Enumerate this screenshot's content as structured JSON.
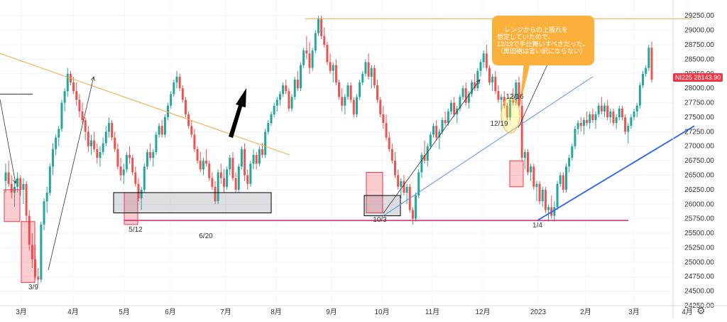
{
  "chart_data": {
    "type": "candlestick",
    "symbol": "NI225",
    "last_price": "28143.90",
    "colors": {
      "up": "#26a69a",
      "down": "#ef5350",
      "accent": "#f23645",
      "callout": "#fbb03b"
    },
    "ylim": [
      24250,
      29400
    ],
    "y_ticks": [
      "24250.00",
      "24500.00",
      "24750.00",
      "25000.00",
      "25250.00",
      "25500.00",
      "25750.00",
      "26000.00",
      "26250.00",
      "26500.00",
      "26750.00",
      "27000.00",
      "27250.00",
      "27500.00",
      "27750.00",
      "28000.00",
      "28250.00",
      "28500.00",
      "28750.00",
      "29000.00",
      "29250.00"
    ],
    "x_ticks": [
      "3月",
      "4月",
      "5月",
      "6月",
      "7月",
      "8月",
      "9月",
      "10月",
      "11月",
      "12月",
      "2023",
      "2月",
      "3月",
      "4月"
    ],
    "events": [
      "3/9",
      "5/12",
      "6/20",
      "10/3",
      "12/16",
      "12/19",
      "1/4"
    ],
    "callout": "レンジからの上振れを\n想定していたので、\n12/19で手仕舞いすべきだった。\n（黒田砲は言い訳にならない）",
    "candles": [
      [
        26400,
        26700,
        26200,
        26550
      ],
      [
        26550,
        26750,
        26300,
        26350
      ],
      [
        26350,
        26500,
        26100,
        26200
      ],
      [
        26200,
        26400,
        25950,
        26300
      ],
      [
        26300,
        26550,
        26200,
        26450
      ],
      [
        26450,
        26500,
        26150,
        26250
      ],
      [
        26250,
        26450,
        26000,
        26350
      ],
      [
        26350,
        26400,
        25700,
        25800
      ],
      [
        25800,
        25900,
        25200,
        25300
      ],
      [
        25300,
        25500,
        24900,
        25050
      ],
      [
        25050,
        25300,
        24700,
        24750
      ],
      [
        24750,
        24900,
        24600,
        24700
      ],
      [
        24700,
        25700,
        24650,
        25650
      ],
      [
        25650,
        26100,
        25550,
        26050
      ],
      [
        26050,
        26300,
        25850,
        26200
      ],
      [
        26200,
        26700,
        26150,
        26650
      ],
      [
        26650,
        27050,
        26500,
        26950
      ],
      [
        26950,
        27200,
        26850,
        27150
      ],
      [
        27150,
        27350,
        27000,
        27300
      ],
      [
        27300,
        27800,
        27250,
        27750
      ],
      [
        27750,
        28000,
        27600,
        27950
      ],
      [
        27950,
        28350,
        27850,
        28250
      ],
      [
        28250,
        28300,
        28050,
        28100
      ],
      [
        28100,
        28200,
        27900,
        27950
      ],
      [
        27950,
        28100,
        27700,
        27800
      ],
      [
        27800,
        27900,
        27500,
        27600
      ],
      [
        27600,
        27750,
        27400,
        27450
      ],
      [
        27450,
        27500,
        27100,
        27250
      ],
      [
        27250,
        27350,
        26900,
        27000
      ],
      [
        27000,
        27200,
        26850,
        27100
      ],
      [
        27100,
        27250,
        26900,
        26950
      ],
      [
        26950,
        27050,
        26700,
        26800
      ],
      [
        26800,
        27000,
        26650,
        26900
      ],
      [
        26900,
        27150,
        26850,
        27050
      ],
      [
        27050,
        27350,
        27000,
        27250
      ],
      [
        27250,
        27500,
        27150,
        27400
      ],
      [
        27400,
        27450,
        27100,
        27150
      ],
      [
        27150,
        27250,
        26900,
        26950
      ],
      [
        26950,
        27050,
        26600,
        26650
      ],
      [
        26650,
        26800,
        26400,
        26500
      ],
      [
        26500,
        26700,
        26350,
        26600
      ],
      [
        26600,
        26900,
        26550,
        26850
      ],
      [
        26850,
        27000,
        26700,
        26800
      ],
      [
        26800,
        26850,
        26500,
        26550
      ],
      [
        26550,
        26650,
        26300,
        26350
      ],
      [
        26350,
        26450,
        26050,
        26100
      ],
      [
        26100,
        26300,
        25900,
        26250
      ],
      [
        26250,
        26700,
        26200,
        26650
      ],
      [
        26650,
        26950,
        26600,
        26900
      ],
      [
        26900,
        27050,
        26750,
        26800
      ],
      [
        26800,
        26950,
        26650,
        26900
      ],
      [
        26900,
        27250,
        26850,
        27200
      ],
      [
        27200,
        27400,
        27150,
        27350
      ],
      [
        27350,
        27450,
        27150,
        27200
      ],
      [
        27200,
        27550,
        27150,
        27500
      ],
      [
        27500,
        27750,
        27450,
        27700
      ],
      [
        27700,
        27950,
        27650,
        27900
      ],
      [
        27900,
        28150,
        27850,
        28100
      ],
      [
        28100,
        28300,
        28000,
        28200
      ],
      [
        28200,
        28250,
        27950,
        28000
      ],
      [
        28000,
        28050,
        27750,
        27800
      ],
      [
        27800,
        27850,
        27500,
        27550
      ],
      [
        27550,
        27600,
        27300,
        27350
      ],
      [
        27350,
        27450,
        27150,
        27200
      ],
      [
        27200,
        27300,
        26900,
        26950
      ],
      [
        26950,
        27000,
        26700,
        26750
      ],
      [
        26750,
        26900,
        26550,
        26600
      ],
      [
        26600,
        26800,
        26500,
        26750
      ],
      [
        26750,
        26950,
        26650,
        26700
      ],
      [
        26700,
        26750,
        26400,
        26450
      ],
      [
        26450,
        26550,
        26250,
        26300
      ],
      [
        26300,
        26400,
        26000,
        26050
      ],
      [
        26050,
        26600,
        26000,
        26550
      ],
      [
        26550,
        26700,
        26350,
        26450
      ],
      [
        26450,
        26600,
        26200,
        26300
      ],
      [
        26300,
        26650,
        26250,
        26600
      ],
      [
        26600,
        26850,
        26500,
        26800
      ],
      [
        26800,
        26900,
        26400,
        26450
      ],
      [
        26450,
        26550,
        26200,
        26250
      ],
      [
        26250,
        26700,
        26200,
        26650
      ],
      [
        26650,
        27000,
        26600,
        26950
      ],
      [
        26950,
        27050,
        26400,
        26500
      ],
      [
        26500,
        26600,
        26250,
        26350
      ],
      [
        26350,
        26750,
        26300,
        26700
      ],
      [
        26700,
        26950,
        26600,
        26850
      ],
      [
        26850,
        26900,
        26600,
        26700
      ],
      [
        26700,
        27000,
        26650,
        26950
      ],
      [
        26950,
        27050,
        26800,
        26850
      ],
      [
        26850,
        27300,
        26800,
        27250
      ],
      [
        27250,
        27450,
        27200,
        27400
      ],
      [
        27400,
        27600,
        27350,
        27550
      ],
      [
        27550,
        27750,
        27500,
        27700
      ],
      [
        27700,
        27850,
        27600,
        27800
      ],
      [
        27800,
        27950,
        27700,
        27900
      ],
      [
        27900,
        28100,
        27850,
        28050
      ],
      [
        28050,
        28150,
        27900,
        27950
      ],
      [
        27950,
        28000,
        27600,
        27650
      ],
      [
        27650,
        27900,
        27600,
        27850
      ],
      [
        27850,
        28200,
        27800,
        28150
      ],
      [
        28150,
        28300,
        27950,
        28000
      ],
      [
        28000,
        28450,
        27950,
        28400
      ],
      [
        28400,
        28700,
        28350,
        28650
      ],
      [
        28650,
        28900,
        28500,
        28600
      ],
      [
        28600,
        28800,
        28250,
        28350
      ],
      [
        28350,
        28700,
        28300,
        28650
      ],
      [
        28650,
        29000,
        28600,
        28950
      ],
      [
        28950,
        29250,
        28900,
        29200
      ],
      [
        29200,
        29250,
        28850,
        28900
      ],
      [
        28900,
        29050,
        28700,
        28750
      ],
      [
        28750,
        28800,
        28400,
        28450
      ],
      [
        28450,
        28600,
        28250,
        28300
      ],
      [
        28300,
        28450,
        28100,
        28400
      ],
      [
        28400,
        28500,
        28050,
        28100
      ],
      [
        28100,
        28150,
        27800,
        27850
      ],
      [
        27850,
        28000,
        27600,
        27700
      ],
      [
        27700,
        27900,
        27550,
        27850
      ],
      [
        27850,
        28100,
        27800,
        28050
      ],
      [
        28050,
        28100,
        27750,
        27800
      ],
      [
        27800,
        27850,
        27500,
        27550
      ],
      [
        27550,
        27900,
        27500,
        27850
      ],
      [
        27850,
        28150,
        27800,
        28100
      ],
      [
        28100,
        28300,
        28050,
        28250
      ],
      [
        28250,
        28500,
        28200,
        28450
      ],
      [
        28450,
        28600,
        28150,
        28200
      ],
      [
        28200,
        28400,
        28000,
        28350
      ],
      [
        28350,
        28400,
        28000,
        28050
      ],
      [
        28050,
        28150,
        27750,
        27800
      ],
      [
        27800,
        27850,
        27500,
        27550
      ],
      [
        27550,
        27700,
        27300,
        27400
      ],
      [
        27400,
        27550,
        27100,
        27150
      ],
      [
        27150,
        27250,
        26900,
        26950
      ],
      [
        26950,
        27050,
        26700,
        26750
      ],
      [
        26750,
        26900,
        26450,
        26500
      ],
      [
        26500,
        26600,
        26250,
        26300
      ],
      [
        26300,
        26450,
        26100,
        26400
      ],
      [
        26400,
        26500,
        26150,
        26200
      ],
      [
        26200,
        26350,
        26000,
        26300
      ],
      [
        26300,
        26350,
        25850,
        25900
      ],
      [
        25900,
        25950,
        25650,
        25750
      ],
      [
        25750,
        26200,
        25700,
        26150
      ],
      [
        26150,
        26600,
        26100,
        26550
      ],
      [
        26550,
        26900,
        26450,
        26850
      ],
      [
        26850,
        27100,
        26700,
        26750
      ],
      [
        26750,
        27050,
        26650,
        27000
      ],
      [
        27000,
        27250,
        26950,
        27200
      ],
      [
        27200,
        27400,
        27150,
        27350
      ],
      [
        27350,
        27450,
        27100,
        27150
      ],
      [
        27150,
        27300,
        26950,
        27250
      ],
      [
        27250,
        27500,
        27200,
        27450
      ],
      [
        27450,
        27600,
        27350,
        27400
      ],
      [
        27400,
        27650,
        27350,
        27600
      ],
      [
        27600,
        27800,
        27550,
        27750
      ],
      [
        27750,
        27850,
        27500,
        27550
      ],
      [
        27550,
        27700,
        27400,
        27650
      ],
      [
        27650,
        27900,
        27600,
        27850
      ],
      [
        27850,
        28050,
        27800,
        28000
      ],
      [
        28000,
        28100,
        27700,
        27750
      ],
      [
        27750,
        27950,
        27650,
        27900
      ],
      [
        27900,
        28150,
        27850,
        28100
      ],
      [
        28100,
        28250,
        27950,
        28000
      ],
      [
        28000,
        28350,
        27950,
        28300
      ],
      [
        28300,
        28500,
        28200,
        28450
      ],
      [
        28450,
        28650,
        28350,
        28600
      ],
      [
        28600,
        28750,
        28300,
        28350
      ],
      [
        28350,
        28400,
        28050,
        28100
      ],
      [
        28100,
        28250,
        27950,
        28200
      ],
      [
        28200,
        28300,
        27900,
        27950
      ],
      [
        27950,
        28050,
        27750,
        27800
      ],
      [
        27800,
        27900,
        27600,
        27850
      ],
      [
        27850,
        27950,
        27650,
        27700
      ],
      [
        27700,
        27750,
        27450,
        27500
      ],
      [
        27500,
        27850,
        27450,
        27800
      ],
      [
        27800,
        28000,
        27700,
        27750
      ],
      [
        27750,
        28150,
        27700,
        28100
      ],
      [
        28100,
        28200,
        27650,
        27700
      ],
      [
        27700,
        27800,
        26750,
        26800
      ],
      [
        26800,
        26950,
        26600,
        26900
      ],
      [
        26900,
        26950,
        26500,
        26550
      ],
      [
        26550,
        26700,
        26400,
        26650
      ],
      [
        26650,
        26700,
        26250,
        26300
      ],
      [
        26300,
        26400,
        26050,
        26350
      ],
      [
        26350,
        26400,
        26000,
        26050
      ],
      [
        26050,
        26300,
        25950,
        26250
      ],
      [
        26250,
        26300,
        25850,
        25900
      ],
      [
        25900,
        26000,
        25700,
        25950
      ],
      [
        25950,
        26150,
        25750,
        25800
      ],
      [
        25800,
        26050,
        25700,
        25950
      ],
      [
        25950,
        26400,
        25900,
        26350
      ],
      [
        26350,
        26550,
        26300,
        26500
      ],
      [
        26500,
        26550,
        26200,
        26250
      ],
      [
        26250,
        26700,
        26200,
        26650
      ],
      [
        26650,
        26850,
        26550,
        26800
      ],
      [
        26800,
        27050,
        26750,
        27000
      ],
      [
        27000,
        27350,
        26950,
        27300
      ],
      [
        27300,
        27450,
        27200,
        27400
      ],
      [
        27400,
        27500,
        27250,
        27350
      ],
      [
        27350,
        27500,
        27200,
        27450
      ],
      [
        27450,
        27600,
        27350,
        27400
      ],
      [
        27400,
        27600,
        27300,
        27550
      ],
      [
        27550,
        27650,
        27400,
        27450
      ],
      [
        27450,
        27600,
        27300,
        27550
      ],
      [
        27550,
        27750,
        27500,
        27700
      ],
      [
        27700,
        27850,
        27550,
        27600
      ],
      [
        27600,
        27750,
        27500,
        27700
      ],
      [
        27700,
        27800,
        27450,
        27500
      ],
      [
        27500,
        27650,
        27400,
        27600
      ],
      [
        27600,
        27650,
        27350,
        27400
      ],
      [
        27400,
        27550,
        27300,
        27500
      ],
      [
        27500,
        27700,
        27450,
        27650
      ],
      [
        27650,
        27700,
        27450,
        27500
      ],
      [
        27500,
        27550,
        27200,
        27250
      ],
      [
        27250,
        27400,
        27050,
        27350
      ],
      [
        27350,
        27550,
        27300,
        27500
      ],
      [
        27500,
        27650,
        27450,
        27600
      ],
      [
        27600,
        27750,
        27500,
        27700
      ],
      [
        27700,
        28100,
        27650,
        28050
      ],
      [
        28050,
        28300,
        28000,
        28250
      ],
      [
        28250,
        28400,
        28200,
        28350
      ],
      [
        28350,
        28750,
        28300,
        28700
      ],
      [
        28700,
        28800,
        28100,
        28150
      ]
    ],
    "shapes": {
      "boxes": [
        {
          "x0": 6,
          "x1": 28,
          "y0": 26250,
          "y1": 25700,
          "kind": "red"
        },
        {
          "x0": 30,
          "x1": 49,
          "y0": 25700,
          "y1": 24650,
          "kind": "red"
        },
        {
          "x0": 175,
          "x1": 194,
          "y0": 26200,
          "y1": 25650,
          "kind": "red"
        },
        {
          "x0": 160,
          "x1": 382,
          "y0": 26200,
          "y1": 25850,
          "kind": "grey"
        },
        {
          "x0": 516,
          "x1": 539,
          "y0": 26550,
          "y1": 25850,
          "kind": "red"
        },
        {
          "x0": 513,
          "x1": 564,
          "y0": 26150,
          "y1": 25800,
          "kind": "grey"
        },
        {
          "x0": 718,
          "x1": 737,
          "y0": 26750,
          "y1": 26300,
          "kind": "red"
        }
      ]
    }
  }
}
